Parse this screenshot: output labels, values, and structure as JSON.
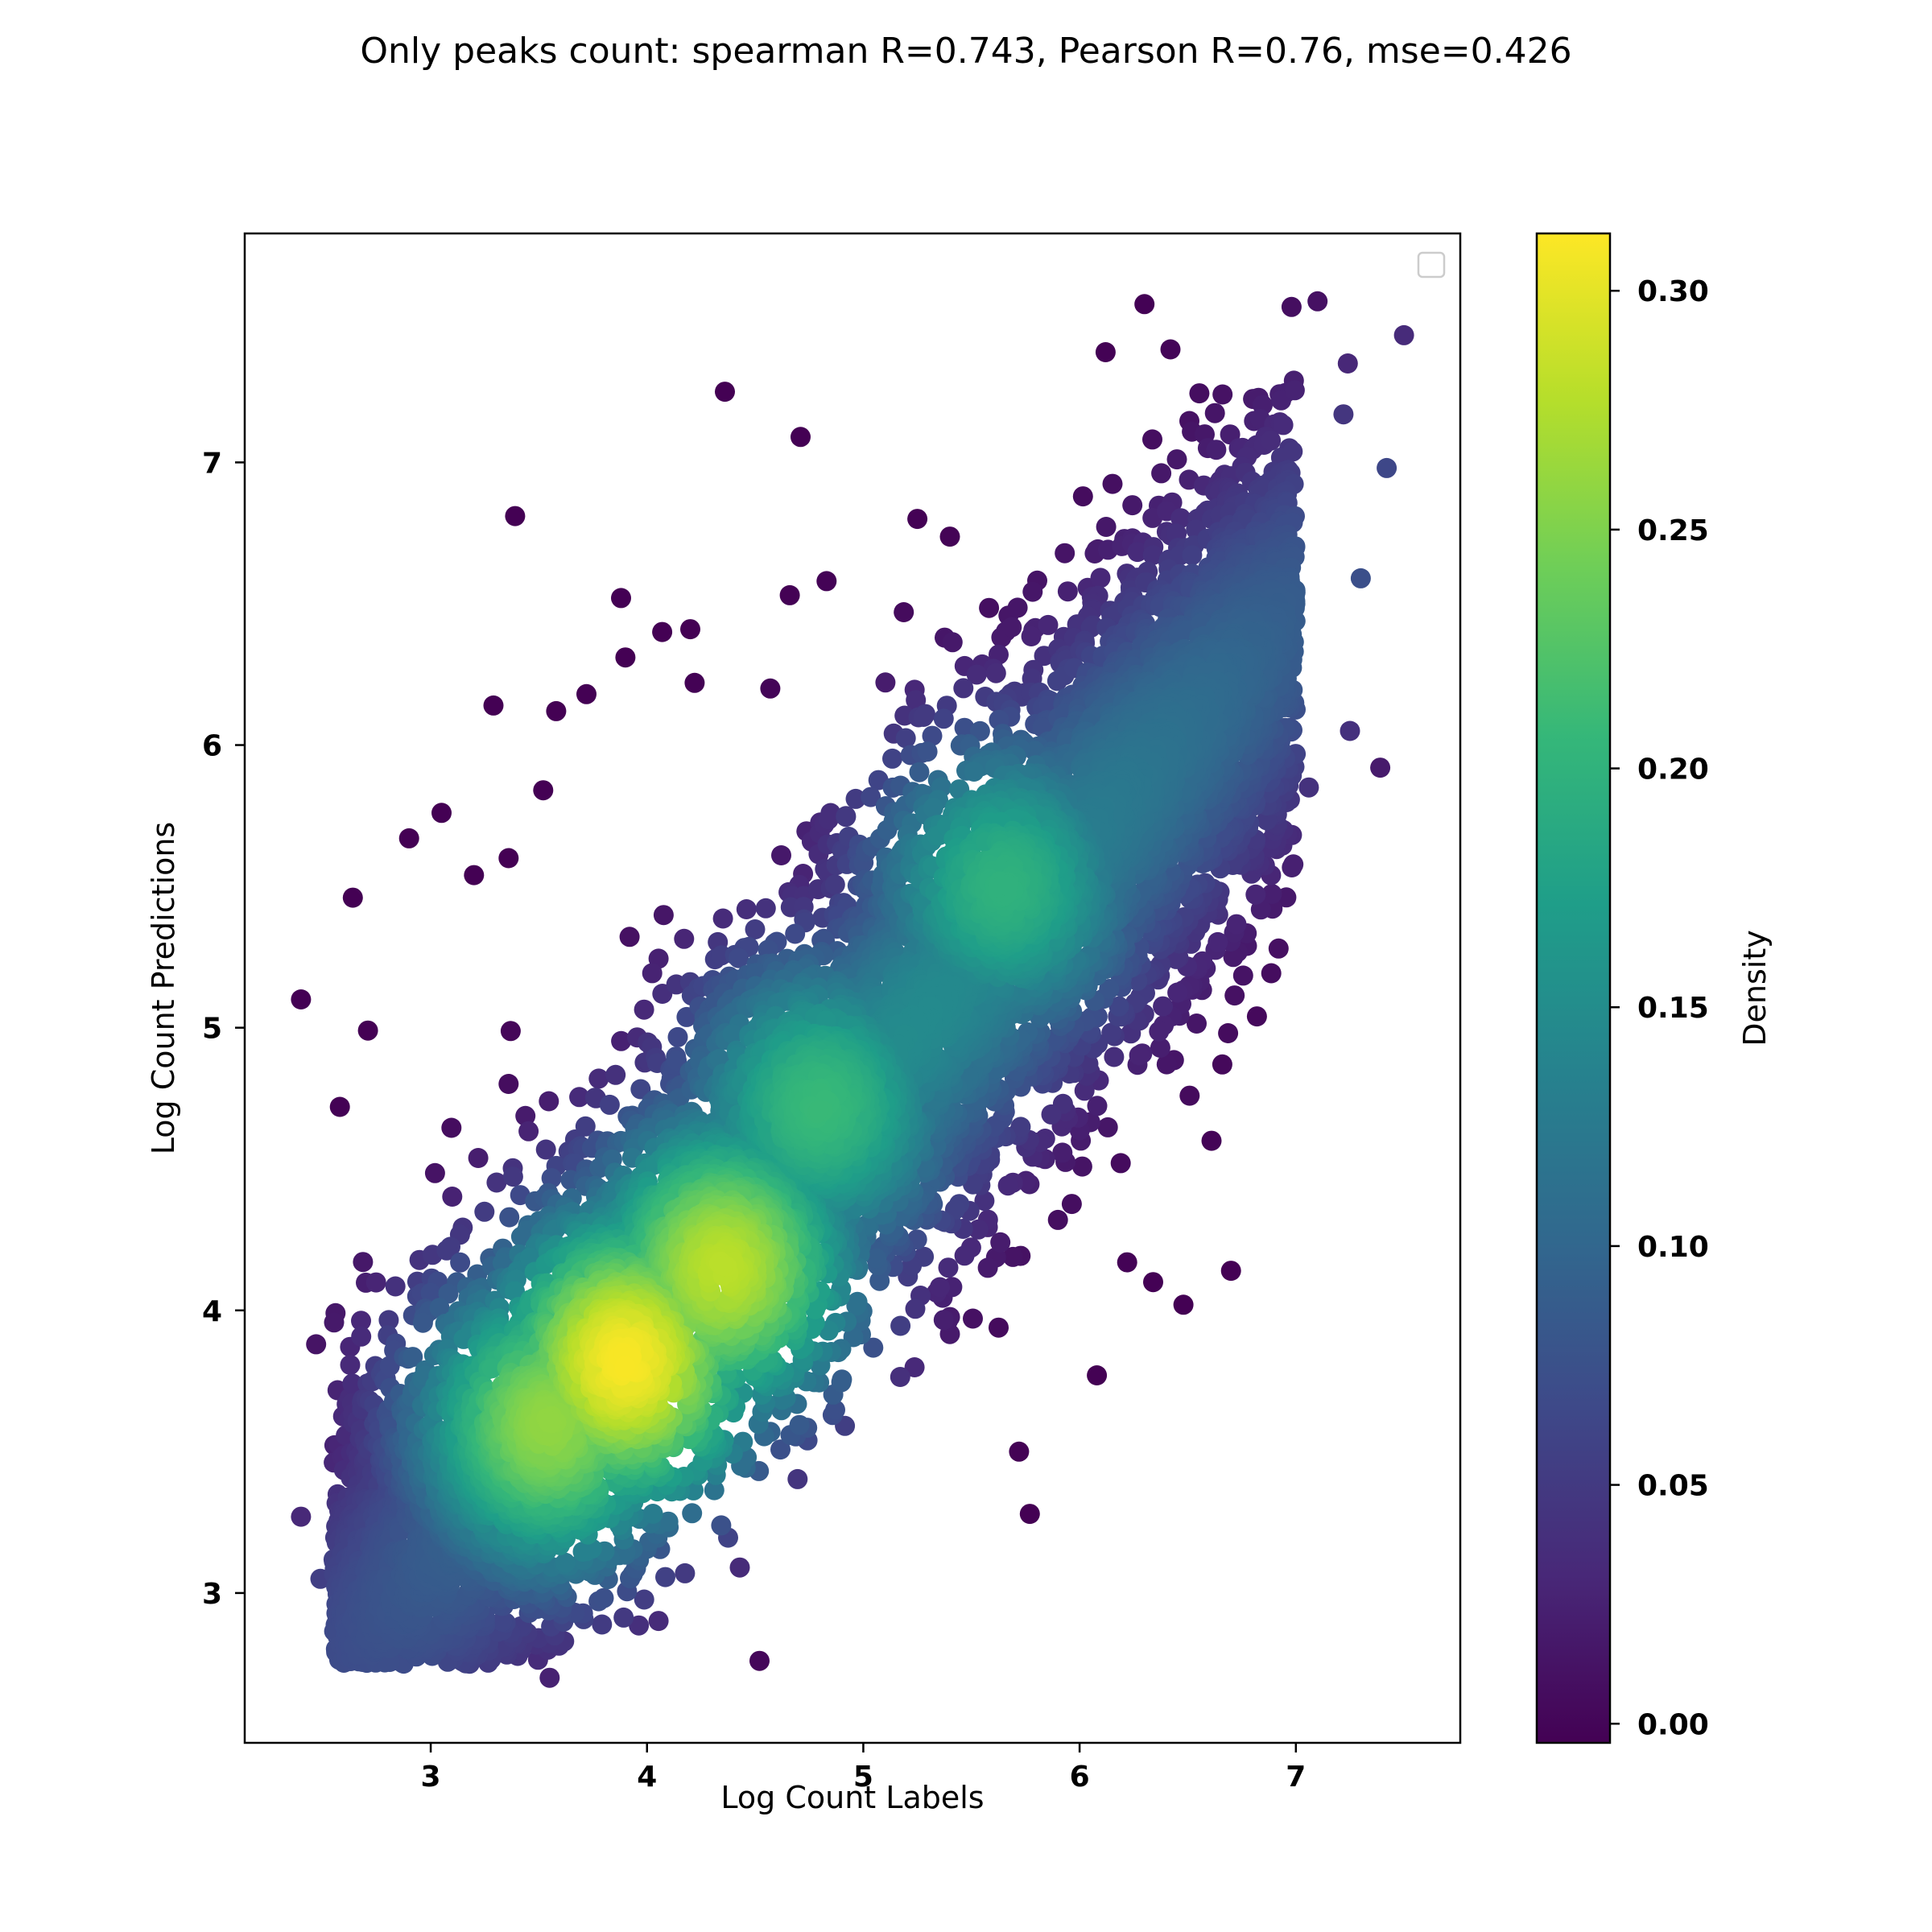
{
  "chart_data": {
    "type": "scatter",
    "title": "Only peaks count: spearman R=0.743, Pearson R=0.76, mse=0.426",
    "xlabel": "Log Count Labels",
    "ylabel": "Log Count Predictions",
    "xlim": [
      2.14,
      7.76
    ],
    "ylim": [
      2.47,
      7.81
    ],
    "xticks": [
      3,
      4,
      5,
      6,
      7
    ],
    "yticks": [
      3,
      4,
      5,
      6,
      7
    ],
    "colormap": "viridis",
    "colorbar": {
      "label": "Density",
      "range": [
        -0.004,
        0.312
      ],
      "ticks": [
        "0.00",
        "0.05",
        "0.10",
        "0.15",
        "0.20",
        "0.25",
        "0.30"
      ],
      "tick_values": [
        0,
        0.05,
        0.1,
        0.15,
        0.2,
        0.25,
        0.3
      ]
    },
    "legend": {
      "position": "upper right",
      "entries": []
    },
    "grid": false,
    "density_peaks": [
      {
        "x": 3.9,
        "y": 3.82,
        "density": 0.31
      },
      {
        "x": 4.35,
        "y": 4.15,
        "density": 0.28
      },
      {
        "x": 3.55,
        "y": 3.6,
        "density": 0.26
      },
      {
        "x": 4.8,
        "y": 4.72,
        "density": 0.21
      },
      {
        "x": 5.65,
        "y": 5.5,
        "density": 0.2
      }
    ],
    "outliers": [
      [
        2.4,
        5.1
      ],
      [
        2.4,
        3.27
      ],
      [
        2.49,
        3.05
      ],
      [
        2.64,
        5.46
      ],
      [
        2.58,
        4.72
      ],
      [
        2.71,
        4.99
      ],
      [
        2.9,
        5.67
      ],
      [
        3.05,
        5.76
      ],
      [
        3.29,
        6.14
      ],
      [
        3.39,
        6.81
      ],
      [
        3.58,
        6.12
      ],
      [
        3.72,
        6.18
      ],
      [
        3.88,
        6.52
      ],
      [
        3.9,
        6.31
      ],
      [
        4.07,
        6.4
      ],
      [
        4.2,
        6.41
      ],
      [
        4.22,
        6.22
      ],
      [
        4.36,
        7.25
      ],
      [
        4.57,
        6.2
      ],
      [
        4.66,
        6.53
      ],
      [
        4.71,
        7.09
      ],
      [
        4.83,
        6.58
      ],
      [
        5.25,
        6.8
      ],
      [
        6.12,
        7.39
      ],
      [
        6.3,
        7.56
      ],
      [
        6.42,
        7.4
      ],
      [
        6.98,
        7.55
      ],
      [
        7.1,
        7.57
      ],
      [
        7.5,
        7.45
      ],
      [
        7.42,
        6.98
      ],
      [
        7.39,
        5.92
      ],
      [
        7.3,
        6.59
      ],
      [
        6.82,
        5.04
      ],
      [
        6.61,
        4.6
      ],
      [
        6.48,
        4.02
      ],
      [
        6.7,
        4.14
      ],
      [
        5.77,
        3.28
      ],
      [
        5.72,
        3.5
      ],
      [
        4.52,
        2.76
      ],
      [
        3.55,
        2.7
      ],
      [
        3.18,
        2.75
      ],
      [
        2.72,
        2.8
      ],
      [
        2.57,
        2.87
      ],
      [
        2.56,
        3.99
      ],
      [
        2.47,
        3.88
      ],
      [
        3.2,
        5.54
      ],
      [
        3.36,
        5.6
      ],
      [
        3.52,
        5.84
      ],
      [
        6.22,
        4.17
      ],
      [
        6.34,
        4.1
      ],
      [
        6.08,
        3.77
      ],
      [
        5.9,
        4.32
      ],
      [
        6.66,
        4.87
      ],
      [
        6.92,
        5.28
      ],
      [
        6.97,
        7.05
      ],
      [
        7.22,
        7.17
      ],
      [
        7.24,
        7.35
      ],
      [
        7.06,
        5.85
      ],
      [
        7.25,
        6.05
      ]
    ]
  }
}
